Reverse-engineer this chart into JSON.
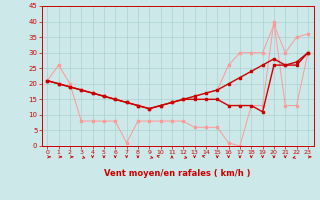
{
  "xlabel": "Vent moyen/en rafales ( km/h )",
  "xlim": [
    -0.5,
    23.5
  ],
  "ylim": [
    0,
    45
  ],
  "yticks": [
    0,
    5,
    10,
    15,
    20,
    25,
    30,
    35,
    40,
    45
  ],
  "xticks": [
    0,
    1,
    2,
    3,
    4,
    5,
    6,
    7,
    8,
    9,
    10,
    11,
    12,
    13,
    14,
    15,
    16,
    17,
    18,
    19,
    20,
    21,
    22,
    23
  ],
  "bg_color": "#cce8e8",
  "grid_color": "#aad0d0",
  "line_scatter_x": [
    0,
    1,
    2,
    3,
    4,
    5,
    6,
    7,
    8,
    9,
    10,
    11,
    12,
    13,
    14,
    15,
    16,
    17,
    18,
    19,
    20,
    21,
    22,
    23
  ],
  "line_scatter_y": [
    21,
    26,
    20,
    8,
    8,
    8,
    8,
    1,
    8,
    8,
    8,
    8,
    8,
    6,
    6,
    6,
    1,
    0,
    13,
    13,
    40,
    13,
    13,
    30
  ],
  "line_scatter_color": "#ff9999",
  "line_upper_x": [
    0,
    1,
    2,
    3,
    4,
    5,
    6,
    7,
    8,
    9,
    10,
    11,
    12,
    13,
    14,
    15,
    16,
    17,
    18,
    19,
    20,
    21,
    22,
    23
  ],
  "line_upper_y": [
    21,
    20,
    19,
    18,
    17,
    16,
    15,
    14,
    13,
    12,
    13,
    14,
    15,
    16,
    17,
    18,
    26,
    30,
    30,
    30,
    39,
    30,
    35,
    36
  ],
  "line_upper_color": "#ff9999",
  "line_dark1_x": [
    0,
    1,
    2,
    3,
    4,
    5,
    6,
    7,
    8,
    9,
    10,
    11,
    12,
    13,
    14,
    15,
    16,
    17,
    18,
    19,
    20,
    21,
    22,
    23
  ],
  "line_dark1_y": [
    21,
    20,
    19,
    18,
    17,
    16,
    15,
    14,
    13,
    12,
    13,
    14,
    15,
    16,
    17,
    18,
    20,
    22,
    24,
    26,
    28,
    26,
    27,
    30
  ],
  "line_dark1_color": "#cc0000",
  "line_dark2_x": [
    0,
    1,
    2,
    3,
    4,
    5,
    6,
    7,
    8,
    9,
    10,
    11,
    12,
    13,
    14,
    15,
    16,
    17,
    18,
    19,
    20,
    21,
    22,
    23
  ],
  "line_dark2_y": [
    21,
    20,
    19,
    18,
    17,
    16,
    15,
    14,
    13,
    12,
    13,
    14,
    15,
    15,
    15,
    15,
    13,
    13,
    13,
    11,
    26,
    26,
    26,
    30
  ],
  "line_dark2_color": "#cc0000",
  "wind_arrows_x": [
    0,
    1,
    2,
    3,
    4,
    5,
    6,
    7,
    8,
    9,
    10,
    11,
    12,
    13,
    14,
    15,
    16,
    17,
    18,
    19,
    20,
    21,
    22,
    23
  ],
  "wind_dx": [
    1,
    1,
    1,
    0.7,
    0,
    0,
    0,
    0,
    0,
    0.7,
    -0.7,
    0,
    0.7,
    0,
    -0.7,
    0,
    0,
    0,
    0,
    0,
    0,
    0,
    -0.7,
    1
  ],
  "wind_dy": [
    0,
    0,
    0,
    -0.7,
    -1,
    -1,
    -1,
    -1,
    -1,
    -0.7,
    0.7,
    1,
    -0.7,
    -1,
    0.7,
    -1,
    -1,
    -1,
    -1,
    -1,
    -1,
    -1,
    -0.7,
    0
  ]
}
